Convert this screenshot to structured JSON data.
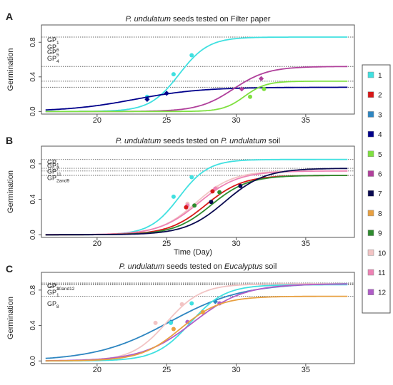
{
  "chart_data": [
    {
      "type": "line",
      "panel_letter": "A",
      "title_italic": "P. undulatum",
      "title_rest": " seeds tested on Filter paper",
      "ylabel": "Germination",
      "xlabel": "",
      "xlim": [
        16,
        38.5
      ],
      "ylim": [
        -0.03,
        1.0
      ],
      "xticks": [
        20,
        25,
        30,
        35
      ],
      "yticks": [
        0.0,
        0.4,
        0.8
      ],
      "ytick_labels": [
        "0.0",
        "0.4",
        "0.8"
      ],
      "gp_lines": [
        {
          "label": "GP",
          "sub": "1",
          "y": 0.86
        },
        {
          "label": "GP",
          "sub": "6",
          "y": 0.52
        },
        {
          "label": "GP",
          "sub": "5",
          "y": 0.35
        },
        {
          "label": "GP",
          "sub": "4",
          "y": 0.28
        }
      ],
      "series": [
        {
          "id": "1",
          "color": "#40E0E0",
          "max": 0.86,
          "x50": 25.9,
          "k": 0.95,
          "points": [
            [
              23.6,
              0.17
            ],
            [
              25.5,
              0.43
            ],
            [
              26.8,
              0.65
            ]
          ]
        },
        {
          "id": "4",
          "color": "#00008B",
          "max": 0.28,
          "x50": 22.7,
          "k": 0.42,
          "points": [
            [
              23.6,
              0.14
            ],
            [
              25.0,
              0.21
            ]
          ]
        },
        {
          "id": "6",
          "color": "#B0409B",
          "max": 0.52,
          "x50": 29.8,
          "k": 0.8,
          "points": [
            [
              30.4,
              0.26
            ],
            [
              31.8,
              0.38
            ]
          ]
        },
        {
          "id": "5",
          "color": "#7FE040",
          "max": 0.35,
          "x50": 30.6,
          "k": 1.3,
          "points": [
            [
              31.0,
              0.17
            ],
            [
              32.0,
              0.26
            ]
          ]
        }
      ]
    },
    {
      "type": "line",
      "panel_letter": "B",
      "title_italic": "P. undulatum",
      "title_rest": " seeds tested on ",
      "title_italic2": "P. undulatum",
      "title_rest2": " soil",
      "ylabel": "Germination",
      "xlabel": "Time (Day)",
      "xlim": [
        16,
        38.5
      ],
      "ylim": [
        -0.03,
        1.0
      ],
      "xticks": [
        20,
        25,
        30,
        35
      ],
      "yticks": [
        0.0,
        0.4,
        0.8
      ],
      "ytick_labels": [
        "0.0",
        "0.4",
        "0.8"
      ],
      "gp_lines": [
        {
          "label": "GP",
          "sub": "1",
          "y": 0.85
        },
        {
          "label": "GP",
          "sub": "7",
          "y": 0.75
        },
        {
          "label": "GP",
          "sub": "11",
          "y": 0.72
        },
        {
          "label": "GP",
          "sub": "2and9",
          "y": 0.67
        }
      ],
      "series": [
        {
          "id": "1",
          "color": "#40E0E0",
          "max": 0.85,
          "x50": 25.9,
          "k": 0.95,
          "points": [
            [
              25.5,
              0.43
            ],
            [
              26.8,
              0.65
            ]
          ]
        },
        {
          "id": "10",
          "color": "#F2C4C4",
          "max": 0.72,
          "x50": 27.1,
          "k": 0.75,
          "points": [
            [
              26.5,
              0.35
            ],
            [
              28.6,
              0.53
            ]
          ]
        },
        {
          "id": "11",
          "color": "#EE82B4",
          "max": 0.72,
          "x50": 27.3,
          "k": 0.7,
          "points": [
            [
              26.5,
              0.33
            ],
            [
              28.5,
              0.52
            ]
          ]
        },
        {
          "id": "2",
          "color": "#D81818",
          "max": 0.67,
          "x50": 27.8,
          "k": 0.75,
          "points": [
            [
              26.4,
              0.31
            ],
            [
              28.3,
              0.49
            ]
          ]
        },
        {
          "id": "9",
          "color": "#2E8B2E",
          "max": 0.67,
          "x50": 28.2,
          "k": 0.75,
          "points": [
            [
              27.0,
              0.33
            ],
            [
              28.8,
              0.48
            ]
          ]
        },
        {
          "id": "7",
          "color": "#0A0A50",
          "max": 0.75,
          "x50": 29.2,
          "k": 0.7,
          "points": [
            [
              28.2,
              0.37
            ],
            [
              30.3,
              0.55
            ]
          ]
        }
      ]
    },
    {
      "type": "line",
      "panel_letter": "C",
      "title_italic": "P. undulatum",
      "title_rest": " seeds tested on ",
      "title_italic2": "Eucalyptus",
      "title_rest2": " soil",
      "ylabel": "Germination",
      "xlabel": "",
      "xlim": [
        16,
        38.5
      ],
      "ylim": [
        -0.03,
        1.0
      ],
      "xticks": [
        20,
        25,
        30,
        35
      ],
      "yticks": [
        0.0,
        0.4,
        0.8
      ],
      "ytick_labels": [
        "0.0",
        "0.4",
        "0.8"
      ],
      "gp_lines": [
        {
          "label": "GP",
          "sub": "3",
          "y": 0.88
        },
        {
          "label": "GP",
          "sub": "10and12",
          "y": 0.87
        },
        {
          "label": "GP",
          "sub": "1",
          "y": 0.86
        },
        {
          "label": "GP",
          "sub": "8",
          "y": 0.73
        }
      ],
      "series": [
        {
          "id": "3",
          "color": "#2E86C1",
          "max": 0.88,
          "x50": 25.2,
          "k": 0.38,
          "points": [
            [
              25.3,
              0.44
            ],
            [
              28.5,
              0.67
            ]
          ]
        },
        {
          "id": "10",
          "color": "#F2C4C4",
          "max": 0.87,
          "x50": 25.0,
          "k": 0.8,
          "points": [
            [
              24.2,
              0.43
            ],
            [
              26.1,
              0.64
            ]
          ]
        },
        {
          "id": "1",
          "color": "#40E0E0",
          "max": 0.86,
          "x50": 26.7,
          "k": 0.8,
          "points": [
            [
              25.3,
              0.43
            ],
            [
              26.8,
              0.65
            ]
          ]
        },
        {
          "id": "12",
          "color": "#B05CC8",
          "max": 0.87,
          "x50": 26.9,
          "k": 0.55,
          "points": [
            [
              26.5,
              0.44
            ],
            [
              28.8,
              0.65
            ]
          ]
        },
        {
          "id": "8",
          "color": "#E8A040",
          "max": 0.73,
          "x50": 26.0,
          "k": 0.7,
          "points": [
            [
              25.5,
              0.36
            ],
            [
              27.6,
              0.55
            ]
          ]
        }
      ]
    }
  ],
  "legend": [
    {
      "label": "1",
      "color": "#40E0E0"
    },
    {
      "label": "2",
      "color": "#D81818"
    },
    {
      "label": "3",
      "color": "#2E86C1"
    },
    {
      "label": "4",
      "color": "#00008B"
    },
    {
      "label": "5",
      "color": "#7FE040"
    },
    {
      "label": "6",
      "color": "#B0409B"
    },
    {
      "label": "7",
      "color": "#0A0A50"
    },
    {
      "label": "8",
      "color": "#E8A040"
    },
    {
      "label": "9",
      "color": "#2E8B2E"
    },
    {
      "label": "10",
      "color": "#F2C4C4"
    },
    {
      "label": "11",
      "color": "#EE82B4"
    },
    {
      "label": "12",
      "color": "#B05CC8"
    }
  ]
}
